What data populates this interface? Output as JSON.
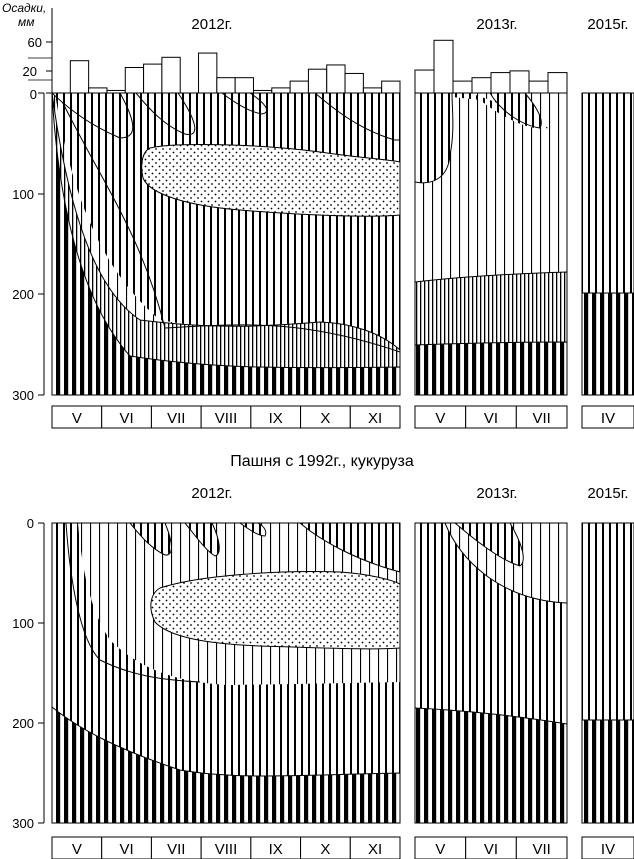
{
  "precip_axis": {
    "title_line1": "Осадки,",
    "title_line2": "мм",
    "ticks": [
      "60",
      "20",
      "0"
    ]
  },
  "depth_ticks": [
    "0",
    "100",
    "200",
    "300"
  ],
  "panels": [
    {
      "id": "top",
      "title": "",
      "years": [
        "2012г.",
        "2013г.",
        "2015г."
      ],
      "months_2012": [
        "V",
        "VI",
        "VII",
        "VIII",
        "IX",
        "X",
        "XI"
      ],
      "months_2013": [
        "V",
        "VI",
        "VII"
      ],
      "months_2015": [
        "IV"
      ],
      "precipitation_2012_mm": [
        0,
        38,
        6,
        3,
        30,
        34,
        42,
        0,
        47,
        18,
        18,
        3,
        6,
        14,
        28,
        33,
        23,
        6,
        14
      ],
      "precipitation_2013_mm": [
        27,
        62,
        14,
        18,
        24,
        26,
        14,
        24
      ]
    },
    {
      "id": "bottom",
      "title": "Пашня с 1992г., кукуруза",
      "years": [
        "2012г.",
        "2013г.",
        "2015г."
      ],
      "months_2012": [
        "V",
        "VI",
        "VII",
        "VIII",
        "IX",
        "X",
        "XI"
      ],
      "months_2013": [
        "V",
        "VI",
        "VII"
      ],
      "months_2015": [
        "IV"
      ]
    }
  ],
  "fills": {
    "dense": "#000000",
    "ink": "#000000",
    "dots": "#000000",
    "paper": "#ffffff"
  }
}
